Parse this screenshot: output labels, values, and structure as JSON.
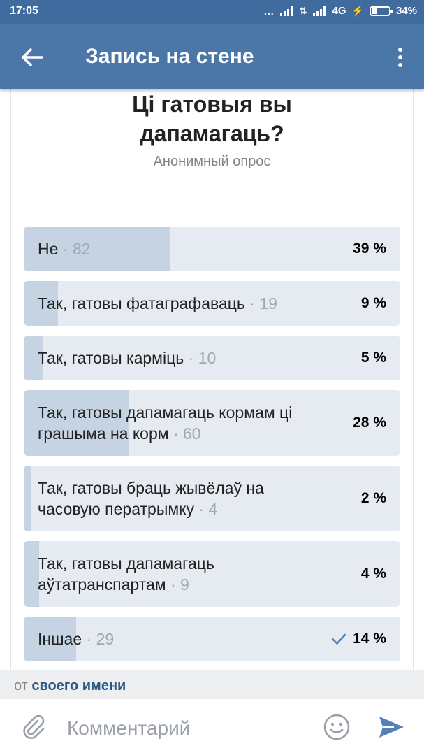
{
  "status_bar": {
    "time": "17:05",
    "dots": "...",
    "network": "4G",
    "battery_text": "34%",
    "battery_level": 0.34
  },
  "header": {
    "title": "Запись на стене",
    "back_icon": "arrow-left-icon",
    "menu_icon": "more-vertical-icon"
  },
  "poll": {
    "title_line1": "Ці гатовыя вы",
    "title_line2": "дапамагаць?",
    "subtitle": "Анонимный опрос",
    "options": [
      {
        "text": "Не",
        "count": "· 82",
        "percent": "39 %",
        "fraction": 0.39
      },
      {
        "text": "Так, гатовы фатаграфаваць",
        "count": "· 19",
        "percent": "9 %",
        "fraction": 0.09
      },
      {
        "text": "Так, гатовы карміць",
        "count": "· 10",
        "percent": "5 %",
        "fraction": 0.05
      },
      {
        "text": "Так, гатовы дапамагаць кормам ці грашыма на корм",
        "count": "· 60",
        "percent": "28 %",
        "fraction": 0.28
      },
      {
        "text": "Так, гатовы браць жывёлаў на часовую ператрымку",
        "count": "· 4",
        "percent": "2 %",
        "fraction": 0.02
      },
      {
        "text": "Так, гатовы дапамагаць аўтатранспартам",
        "count": "· 9",
        "percent": "4 %",
        "fraction": 0.04
      },
      {
        "text": "Іншае",
        "count": "· 29",
        "percent": "14 %",
        "fraction": 0.14,
        "voted": true
      }
    ]
  },
  "author": {
    "prefix": "от",
    "link": "своего имени"
  },
  "comment": {
    "placeholder": "Комментарий",
    "attach_icon": "paperclip-icon",
    "emoji_icon": "smile-icon",
    "send_icon": "send-icon"
  },
  "colors": {
    "header": "#4a76a8",
    "status_bar": "#3f6b9f",
    "option_bg": "#e5ebf1",
    "option_fill": "#c5d3e2",
    "accent": "#5181b8",
    "link": "#2a5885"
  }
}
